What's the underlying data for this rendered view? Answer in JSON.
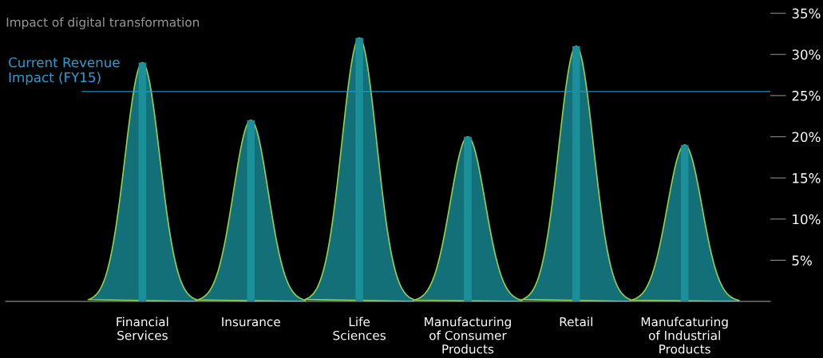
{
  "chart_data": {
    "type": "bar",
    "title": "Impact of digital transformation",
    "categories": [
      "Financial\nServices",
      "Insurance",
      "Life\nSciences",
      "Manufacturing\nof Consumer\nProducts",
      "Retail",
      "Manufcaturing\nof Industrial\nProducts"
    ],
    "values": [
      29,
      22,
      32,
      20,
      31,
      19
    ],
    "color": "#1b8f9a",
    "ylim": [
      0,
      35
    ],
    "yticks": [
      {
        "value": 5,
        "label": "5%"
      },
      {
        "value": 10,
        "label": "10%"
      },
      {
        "value": 15,
        "label": "15%"
      },
      {
        "value": 20,
        "label": "20%"
      },
      {
        "value": 25,
        "label": "25%"
      },
      {
        "value": 30,
        "label": "30%"
      },
      {
        "value": 35,
        "label": "35%"
      }
    ],
    "ref_lines": [
      {
        "axis": "y",
        "value": 25.5,
        "label": "Current Revenue\nImpact (FY15)",
        "color": "#2a9fd6"
      }
    ],
    "grid": false,
    "legend": false
  }
}
